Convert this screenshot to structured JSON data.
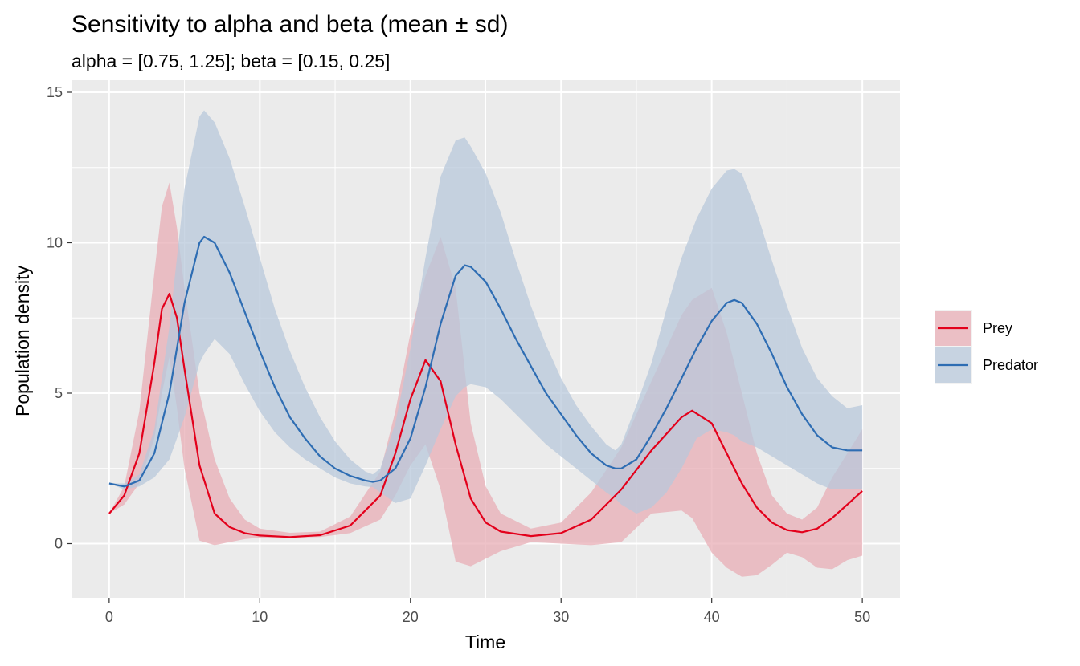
{
  "chart_data": {
    "type": "area",
    "title": "Sensitivity to alpha and beta (mean ± sd)",
    "subtitle": "alpha = [0.75, 1.25]; beta = [0.15, 0.25]",
    "xlabel": "Time",
    "ylabel": "Population density",
    "xlim": [
      -2.5,
      52.5
    ],
    "ylim": [
      -1.8,
      15.4
    ],
    "x_ticks": [
      0,
      10,
      20,
      30,
      40,
      50
    ],
    "x_tick_labels": [
      "0",
      "10",
      "20",
      "30",
      "40",
      "50"
    ],
    "y_ticks": [
      0,
      5,
      10,
      15
    ],
    "y_tick_labels": [
      "0",
      "5",
      "10",
      "15"
    ],
    "grid": true,
    "legend_position": "right",
    "series": [
      {
        "name": "Prey",
        "color": "#e3001b",
        "fill_color": "#e8aeb6",
        "x": [
          0,
          1,
          2,
          3,
          3.5,
          4,
          4.5,
          5,
          6,
          7,
          8,
          9,
          10,
          12,
          14,
          16,
          18,
          19,
          20,
          21,
          22,
          23,
          24,
          25,
          26,
          28,
          30,
          32,
          34,
          36,
          38,
          38.7,
          40,
          41,
          42,
          43,
          44,
          45,
          46,
          47,
          48,
          49,
          50
        ],
        "mean": [
          1.0,
          1.6,
          3.0,
          6.0,
          7.8,
          8.3,
          7.5,
          5.8,
          2.6,
          1.0,
          0.55,
          0.35,
          0.27,
          0.22,
          0.28,
          0.6,
          1.6,
          3.0,
          4.8,
          6.1,
          5.4,
          3.3,
          1.5,
          0.7,
          0.4,
          0.25,
          0.35,
          0.8,
          1.8,
          3.1,
          4.2,
          4.42,
          4.0,
          3.0,
          2.0,
          1.2,
          0.7,
          0.45,
          0.38,
          0.5,
          0.85,
          1.3,
          1.75
        ],
        "lower": [
          1.0,
          1.3,
          2.0,
          3.5,
          5.0,
          6.2,
          4.5,
          2.5,
          0.1,
          -0.05,
          0.05,
          0.15,
          0.2,
          0.2,
          0.22,
          0.35,
          0.8,
          1.6,
          2.6,
          3.3,
          1.8,
          -0.6,
          -0.75,
          -0.5,
          -0.25,
          0.05,
          0.0,
          -0.05,
          0.05,
          1.0,
          1.1,
          0.85,
          -0.3,
          -0.8,
          -1.1,
          -1.05,
          -0.7,
          -0.3,
          -0.45,
          -0.8,
          -0.85,
          -0.55,
          -0.4
        ],
        "upper": [
          1.0,
          1.9,
          4.4,
          9.0,
          11.2,
          12.0,
          10.5,
          8.5,
          5.0,
          2.8,
          1.5,
          0.8,
          0.5,
          0.36,
          0.4,
          0.9,
          2.4,
          4.4,
          7.0,
          8.9,
          10.2,
          8.5,
          4.0,
          1.9,
          1.0,
          0.5,
          0.7,
          1.7,
          3.2,
          5.4,
          7.6,
          8.1,
          8.5,
          7.0,
          5.0,
          3.0,
          1.6,
          1.0,
          0.8,
          1.2,
          2.2,
          3.0,
          3.8
        ]
      },
      {
        "name": "Predator",
        "color": "#2e6db3",
        "fill_color": "#b8c8db",
        "x": [
          0,
          1,
          2,
          3,
          4,
          5,
          6,
          6.3,
          7,
          8,
          9,
          10,
          11,
          12,
          13,
          14,
          15,
          16,
          17,
          17.5,
          18,
          19,
          20,
          21,
          22,
          23,
          23.6,
          24,
          25,
          26,
          27,
          28,
          29,
          30,
          31,
          32,
          33,
          33.6,
          34,
          35,
          36,
          37,
          38,
          39,
          40,
          41,
          41.5,
          42,
          43,
          44,
          45,
          46,
          47,
          48,
          49,
          50
        ],
        "mean": [
          2.0,
          1.9,
          2.1,
          3.0,
          5.0,
          8.0,
          10.0,
          10.2,
          10.0,
          9.0,
          7.7,
          6.4,
          5.2,
          4.2,
          3.5,
          2.9,
          2.5,
          2.25,
          2.1,
          2.05,
          2.1,
          2.5,
          3.5,
          5.2,
          7.3,
          8.9,
          9.25,
          9.2,
          8.7,
          7.8,
          6.8,
          5.9,
          5.0,
          4.3,
          3.6,
          3.0,
          2.6,
          2.5,
          2.5,
          2.8,
          3.6,
          4.5,
          5.5,
          6.5,
          7.4,
          8.0,
          8.1,
          8.0,
          7.3,
          6.3,
          5.2,
          4.3,
          3.6,
          3.2,
          3.1,
          3.1
        ],
        "lower": [
          2.0,
          1.8,
          1.9,
          2.2,
          2.8,
          4.2,
          6.0,
          6.3,
          6.8,
          6.3,
          5.3,
          4.4,
          3.7,
          3.2,
          2.8,
          2.5,
          2.2,
          2.0,
          1.9,
          1.88,
          1.7,
          1.35,
          1.5,
          2.6,
          3.8,
          4.9,
          5.2,
          5.3,
          5.2,
          4.8,
          4.3,
          3.8,
          3.3,
          2.9,
          2.5,
          2.1,
          1.7,
          1.5,
          1.3,
          1.0,
          1.2,
          1.7,
          2.5,
          3.5,
          3.8,
          3.7,
          3.6,
          3.4,
          3.2,
          2.9,
          2.6,
          2.3,
          2.0,
          1.8,
          1.8,
          1.8
        ],
        "upper": [
          2.0,
          2.0,
          2.3,
          3.8,
          7.2,
          11.8,
          14.2,
          14.4,
          14.0,
          12.8,
          11.2,
          9.5,
          7.8,
          6.4,
          5.2,
          4.2,
          3.4,
          2.8,
          2.4,
          2.3,
          2.5,
          4.0,
          6.5,
          9.5,
          12.2,
          13.4,
          13.5,
          13.2,
          12.3,
          11.0,
          9.4,
          7.9,
          6.6,
          5.5,
          4.6,
          3.9,
          3.3,
          3.1,
          3.3,
          4.6,
          6.0,
          7.8,
          9.5,
          10.8,
          11.8,
          12.4,
          12.45,
          12.3,
          11.0,
          9.4,
          7.9,
          6.5,
          5.5,
          4.9,
          4.5,
          4.6
        ]
      }
    ]
  }
}
